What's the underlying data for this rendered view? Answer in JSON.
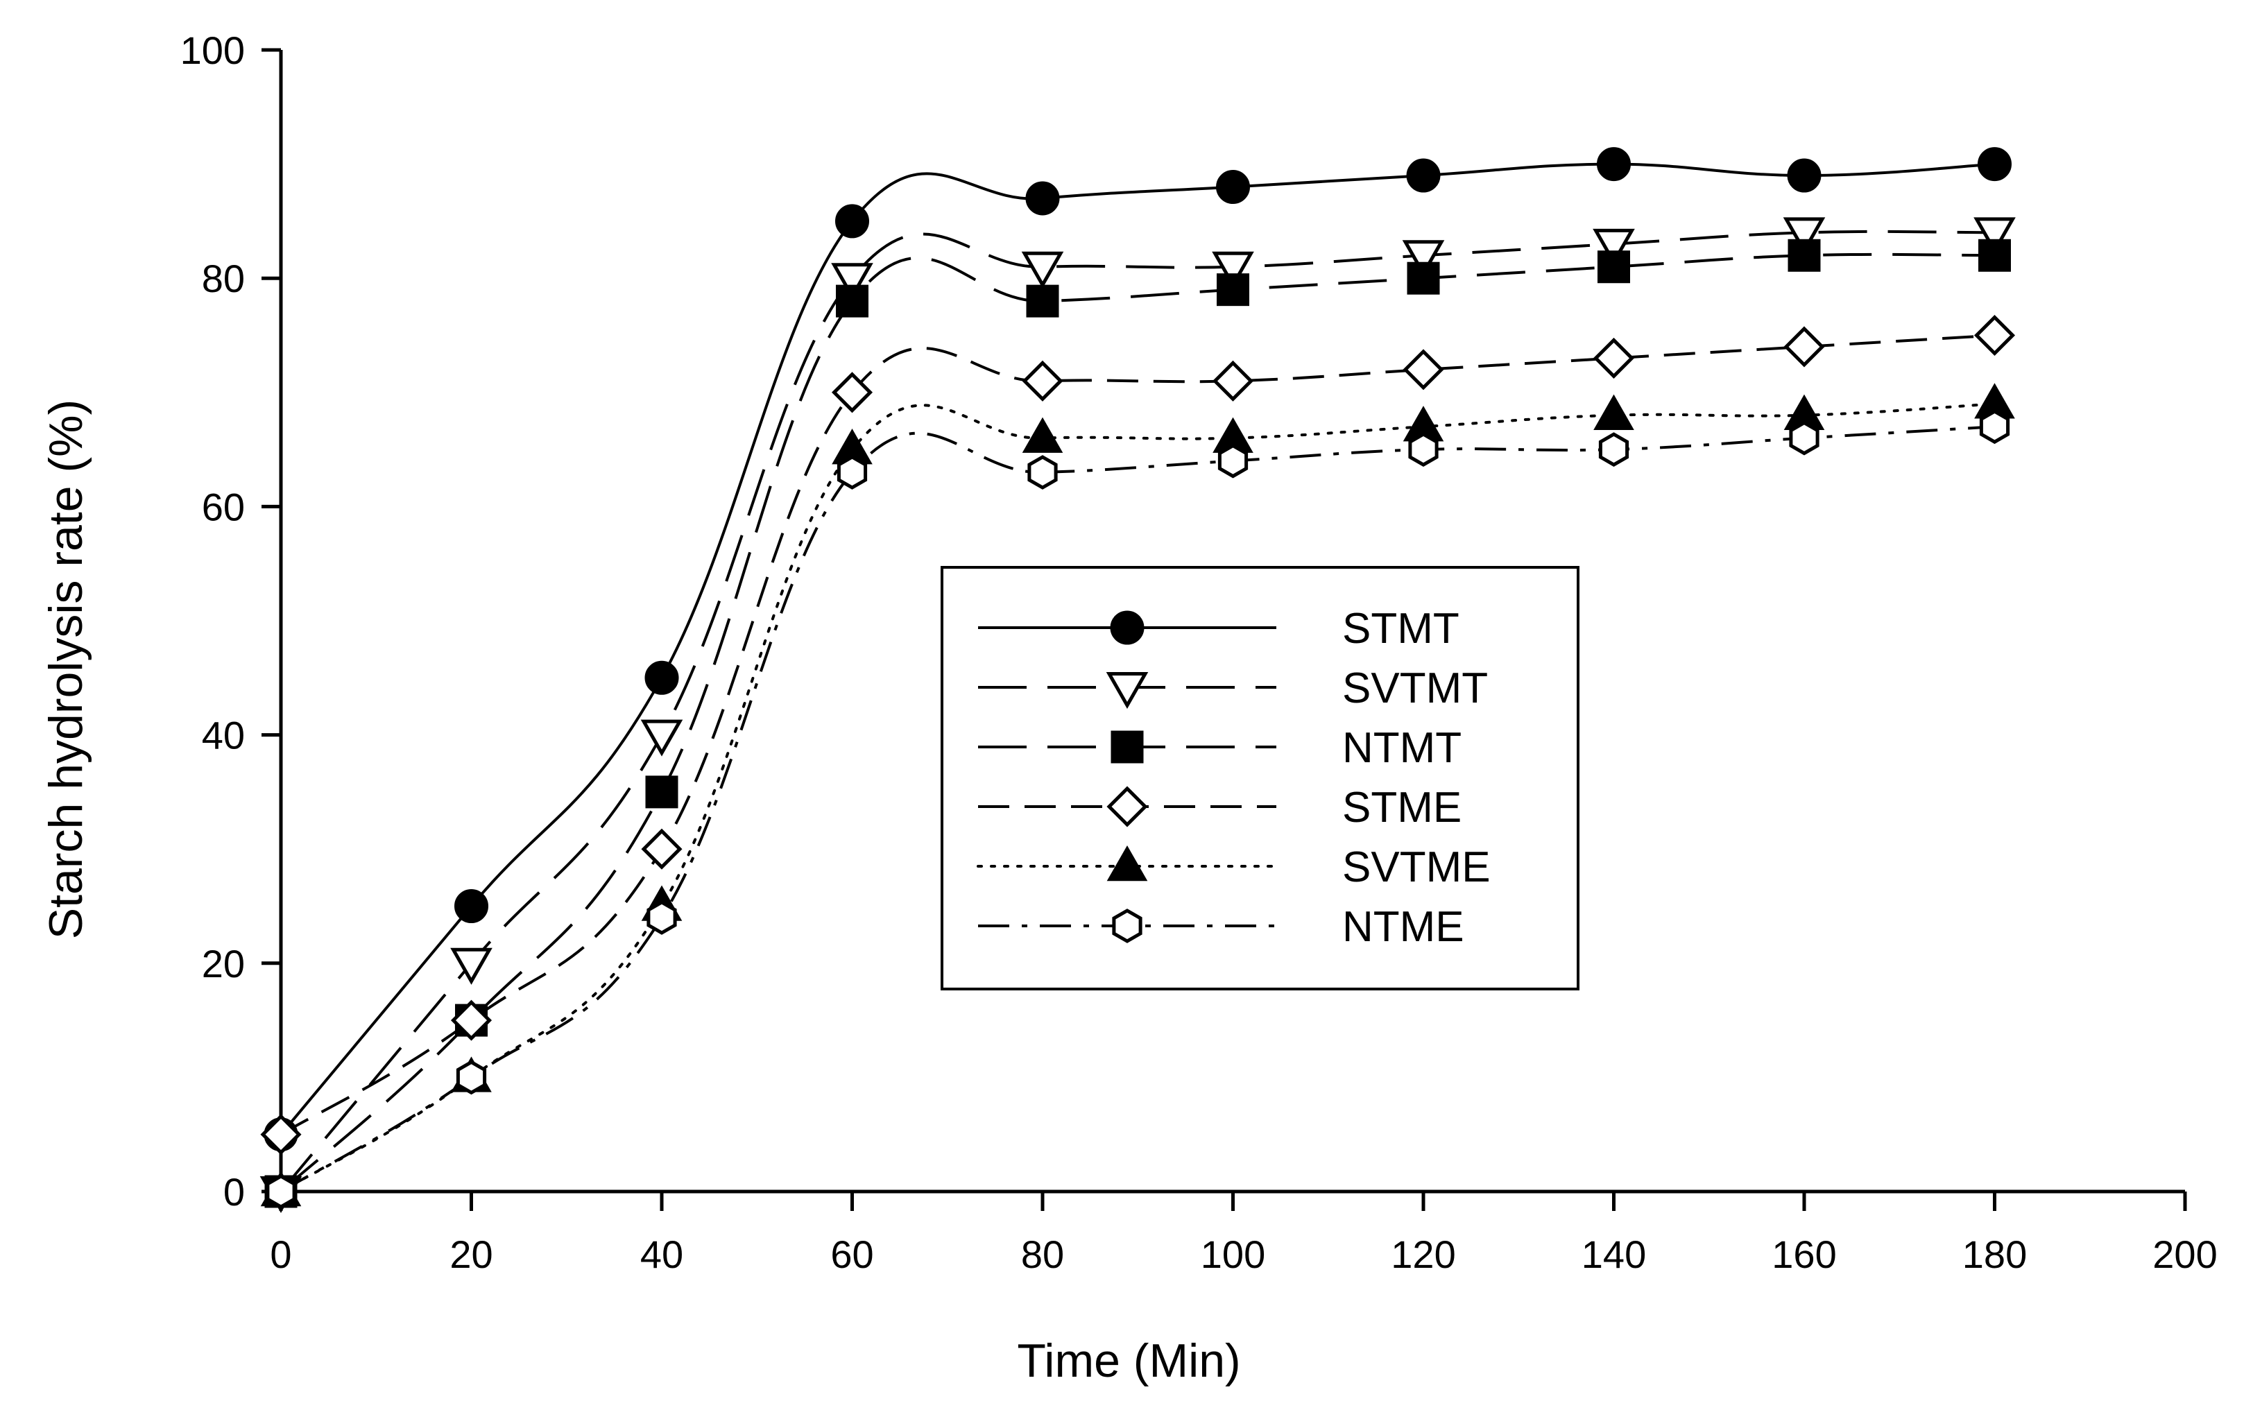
{
  "chart_data": {
    "type": "line",
    "title": "",
    "xlabel": "Time (Min)",
    "ylabel": "Starch hydrolysis rate (%)",
    "xlim": [
      0,
      200
    ],
    "ylim": [
      0,
      100
    ],
    "xticks": [
      0,
      20,
      40,
      60,
      80,
      100,
      120,
      140,
      160,
      180,
      200
    ],
    "yticks": [
      0,
      20,
      40,
      60,
      80,
      100
    ],
    "x": [
      0,
      20,
      40,
      60,
      80,
      100,
      120,
      140,
      160,
      180
    ],
    "legend_position": "center",
    "series": [
      {
        "name": "STMT",
        "marker": "circle-filled",
        "line": "solid",
        "values": [
          5,
          25,
          45,
          85,
          87,
          88,
          89,
          90,
          89,
          90
        ]
      },
      {
        "name": "SVTMT",
        "marker": "triangle-down-open",
        "line": "long-dash",
        "values": [
          0,
          20,
          40,
          80,
          81,
          81,
          82,
          83,
          84,
          84
        ]
      },
      {
        "name": "NTMT",
        "marker": "square-filled",
        "line": "long-dash",
        "values": [
          0,
          15,
          35,
          78,
          78,
          79,
          80,
          81,
          82,
          82
        ]
      },
      {
        "name": "STME",
        "marker": "diamond-open",
        "line": "dash",
        "values": [
          5,
          15,
          30,
          70,
          71,
          71,
          72,
          73,
          74,
          75
        ]
      },
      {
        "name": "SVTME",
        "marker": "triangle-up-filled",
        "line": "dot",
        "values": [
          0,
          10,
          25,
          65,
          66,
          66,
          67,
          68,
          68,
          69
        ]
      },
      {
        "name": "NTME",
        "marker": "hexagon-open",
        "line": "dash-dot",
        "values": [
          0,
          10,
          24,
          63,
          63,
          64,
          65,
          65,
          66,
          67
        ]
      }
    ]
  }
}
